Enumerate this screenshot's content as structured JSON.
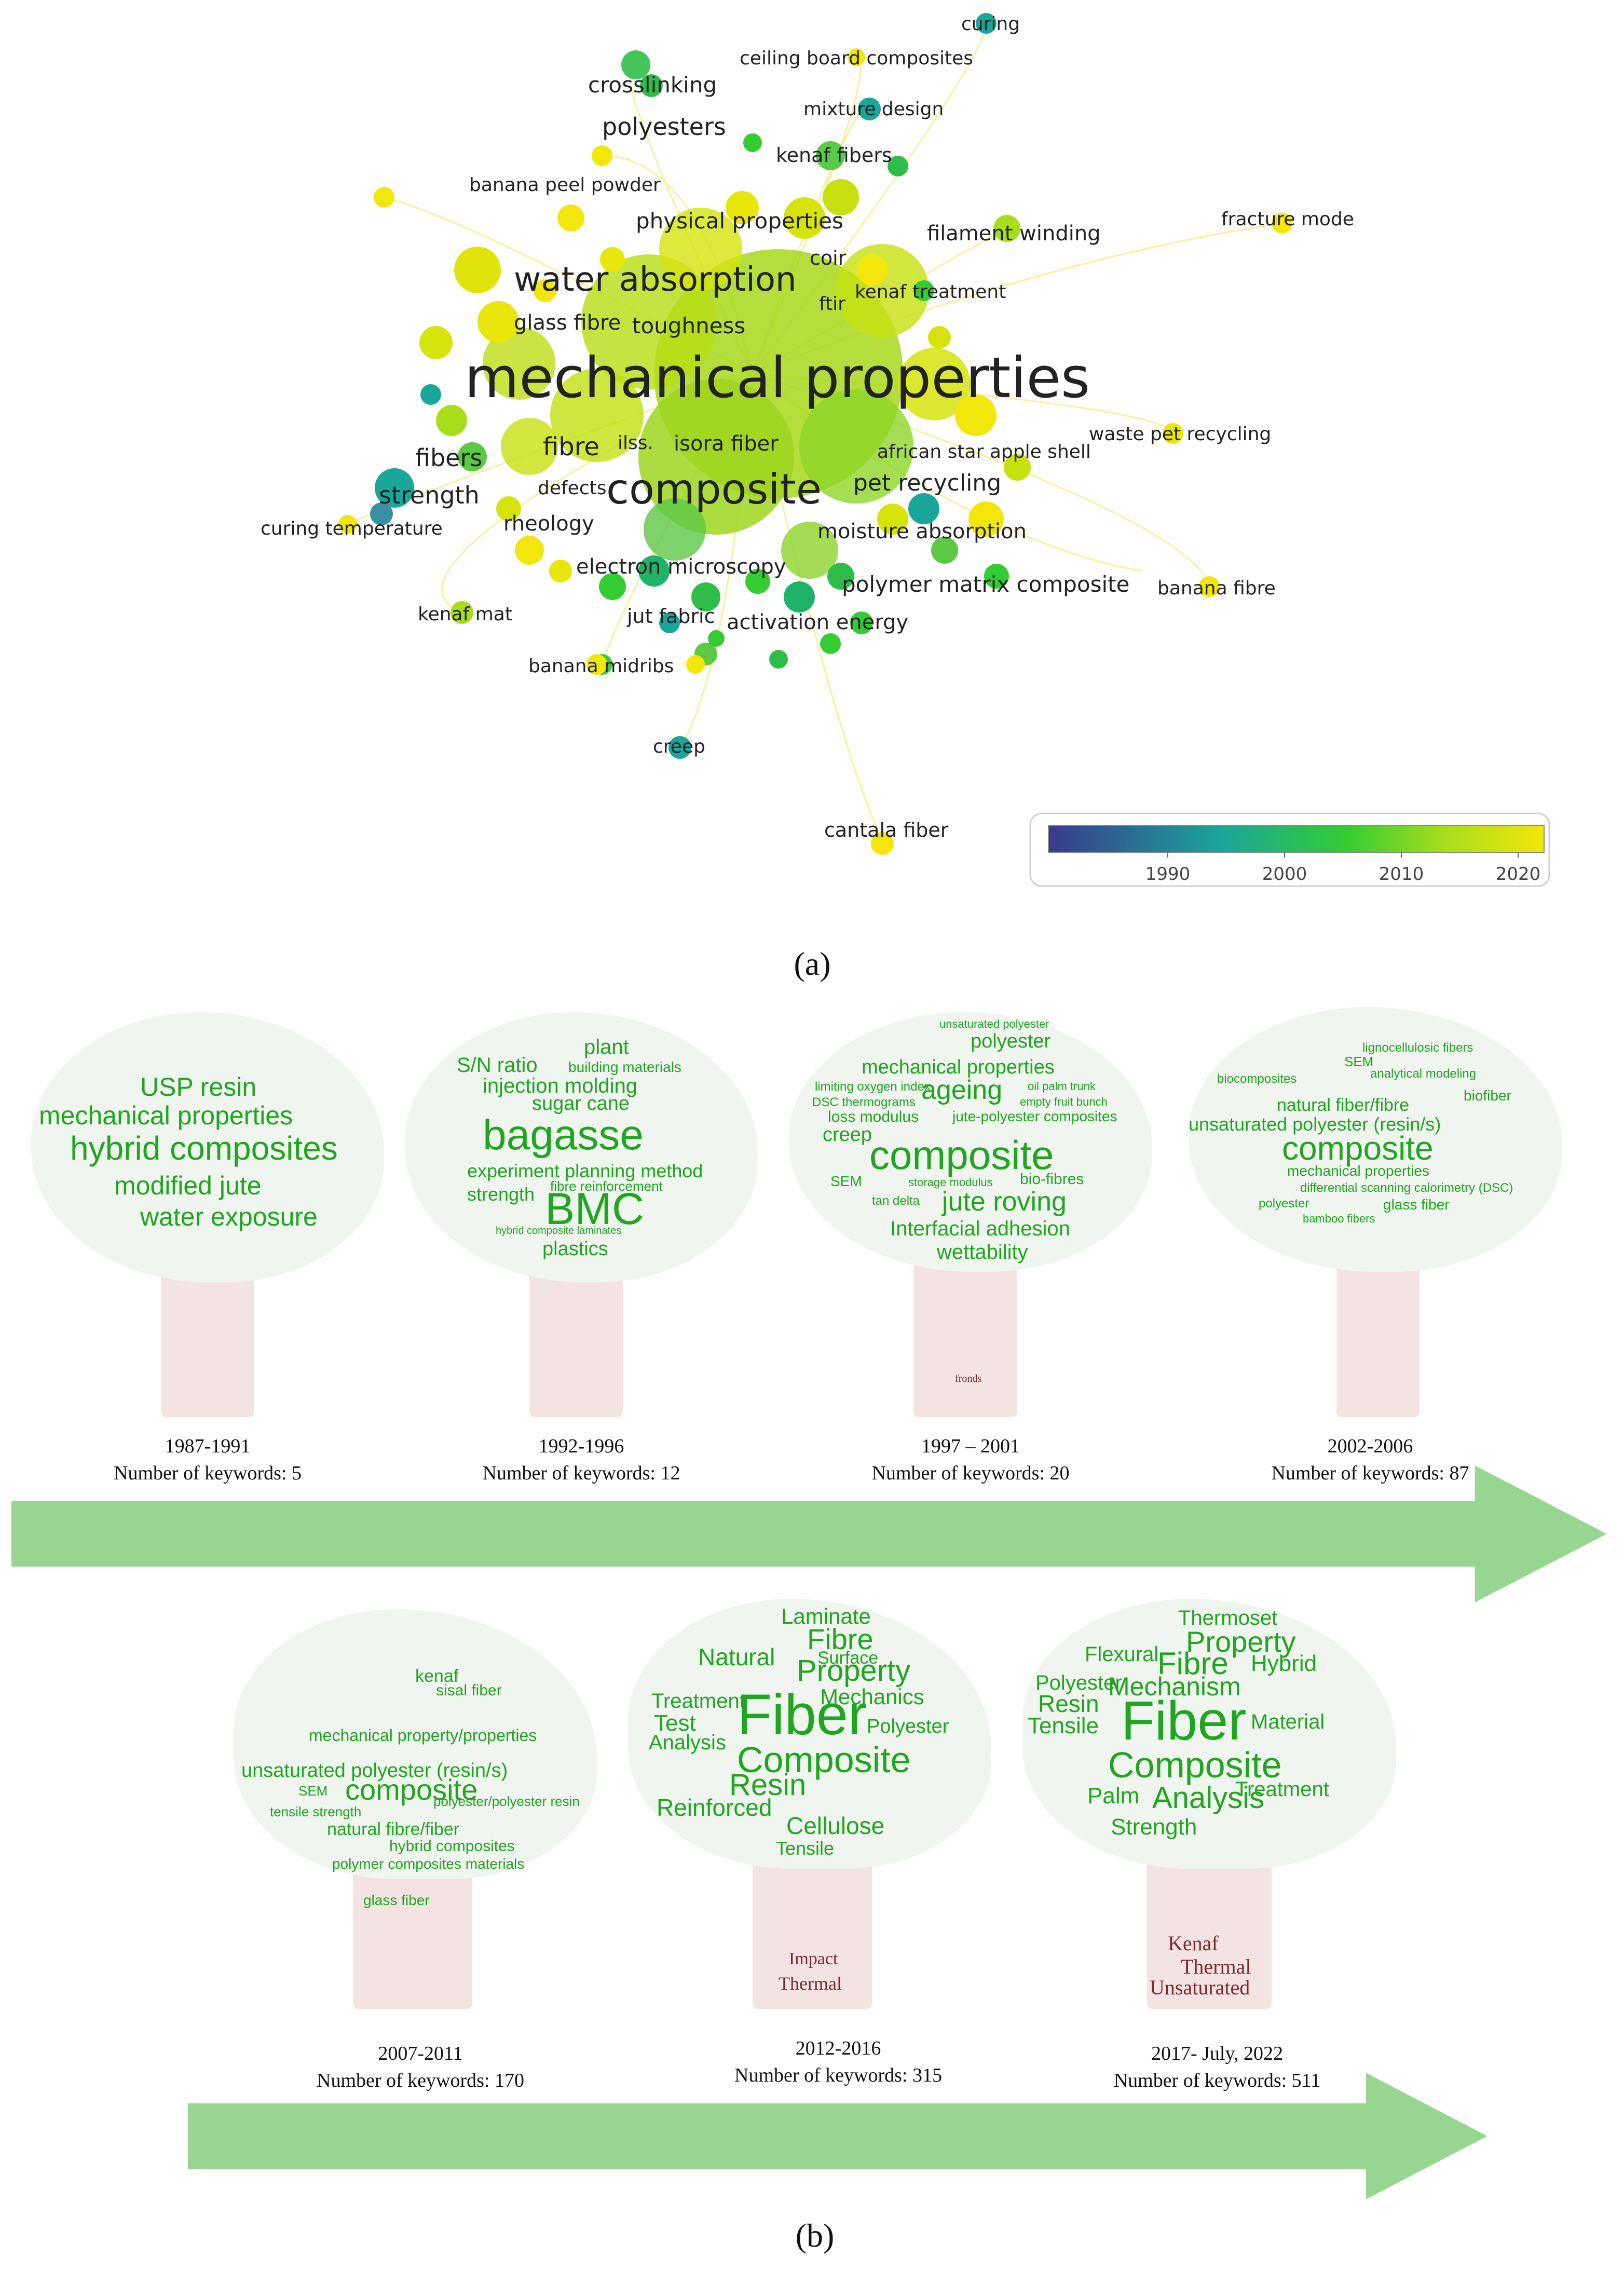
{
  "network": {
    "keywords": [
      "curing",
      "ceiling board composites",
      "crosslinking",
      "mixture design",
      "polyesters",
      "kenaf fibers",
      "banana peel powder",
      "physical properties",
      "filament winding",
      "fracture mode",
      "coir",
      "water absorption",
      "ftir",
      "kenaf treatment",
      "glass fibre",
      "toughness",
      "mechanical properties",
      "waste pet recycling",
      "fibers",
      "fibre",
      "ilss.",
      "isora fiber",
      "african star apple shell",
      "composite",
      "defects",
      "pet recycling",
      "strength",
      "rheology",
      "curing temperature",
      "moisture absorption",
      "electron microscopy",
      "polymer matrix composite",
      "banana fibre",
      "kenaf mat",
      "jut fabric",
      "activation energy",
      "banana midribs",
      "creep",
      "cantala fiber"
    ],
    "legend_ticks": [
      "1990",
      "2000",
      "2010",
      "2020"
    ],
    "colors": {
      "dark": "#3a3a8c",
      "teal": "#1aa69a",
      "green": "#33cc33",
      "lime": "#a8dd1c",
      "yellow": "#f2e60a"
    }
  },
  "panel_a_label": "(a)",
  "panel_b_label": "(b)",
  "periods": [
    {
      "range": "1987-1991",
      "count": "Number of keywords: 5",
      "words": [
        "USP resin",
        "mechanical properties",
        "hybrid composites",
        "modified jute",
        "water exposure"
      ]
    },
    {
      "range": "1992-1996",
      "count": "Number of keywords: 12",
      "words": [
        "plant",
        "S/N ratio",
        "building materials",
        "injection molding",
        "sugar cane",
        "bagasse",
        "experiment planning method",
        "strength",
        "fibre reinforcement",
        "BMC",
        "hybrid composite laminates",
        "plastics"
      ]
    },
    {
      "range": "1997 – 2001",
      "count": "Number of keywords: 20",
      "words": [
        "unsaturated polyester",
        "polyester",
        "mechanical properties",
        "ageing",
        "oil palm trunk",
        "limiting oxygen index",
        "DSC thermograms",
        "empty fruit bunch",
        "loss modulus",
        "creep",
        "jute-polyester composites",
        "composite",
        "SEM",
        "storage modulus",
        "bio-fibres",
        "tan delta",
        "jute roving",
        "Interfacial adhesion",
        "wettability",
        "fronds"
      ]
    },
    {
      "range": "2002-2006",
      "count": "Number of keywords: 87",
      "words": [
        "lignocellulosic fibers",
        "SEM",
        "biocomposites",
        "analytical modeling",
        "biofiber",
        "unsaturated polyester (resin/s)",
        "natural fiber/fibre",
        "composite",
        "mechanical properties",
        "differential scanning calorimetry (DSC)",
        "polyester",
        "glass fiber",
        "bamboo fibers"
      ]
    },
    {
      "range": "2007-2011",
      "count": "Number of keywords: 170",
      "words": [
        "kenaf",
        "sisal fiber",
        "mechanical property/properties",
        "unsaturated polyester (resin/s)",
        "SEM",
        "composite",
        "tensile strength",
        "polyester/polyester resin",
        "natural fibre/fiber",
        "hybrid composites",
        "polymer composites materials",
        "glass fiber"
      ]
    },
    {
      "range": "2012-2016",
      "count": "Number of keywords: 315",
      "words": [
        "Laminate",
        "Fibre",
        "Natural",
        "Property",
        "Surface",
        "Mechanics",
        "Fiber",
        "Treatment",
        "Test",
        "Polyester",
        "Analysis",
        "Composite",
        "Resin",
        "Reinforced",
        "Cellulose",
        "Tensile",
        "Impact",
        "Thermal"
      ]
    },
    {
      "range": "2017-  July, 2022",
      "count": "Number of keywords: 511",
      "words": [
        "Thermoset",
        "Property",
        "Fibre",
        "Flexural",
        "Hybrid",
        "Polyester",
        "Mechanism",
        "Resin",
        "Fiber",
        "Tensile",
        "Material",
        "Composite",
        "Analysis",
        "Treatment",
        "Palm",
        "Strength",
        "Kenaf",
        "Thermal",
        "Unsaturated"
      ]
    }
  ]
}
